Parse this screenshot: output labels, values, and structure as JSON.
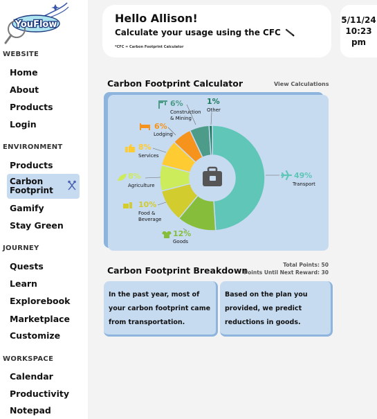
{
  "sidebar": {
    "logo_text": "YouFlow",
    "sections": [
      {
        "title": "WEBSITE",
        "items": [
          "Home",
          "About",
          "Products",
          "Login"
        ]
      },
      {
        "title": "ENVIRONMENT",
        "items": [
          "Products",
          "Carbon Footprint",
          "Gamify",
          "Stay Green"
        ]
      },
      {
        "title": "JOURNEY",
        "items": [
          "Quests",
          "Learn",
          "Explorebook",
          "Marketplace",
          "Customize"
        ]
      },
      {
        "title": "WORKSPACE",
        "items": [
          "Calendar",
          "Productivity",
          "Notepad"
        ]
      }
    ],
    "active_item": "Carbon Footprint"
  },
  "header": {
    "greeting": "Hello Allison!",
    "subtitle": "Calculate your usage using the CFC",
    "note": "*CFC = Carbon Footprint Calculator"
  },
  "datetime": {
    "date": "5/11/24",
    "time": "10:23",
    "ampm": "pm"
  },
  "calculator": {
    "title": "Carbon Footprint Calculator",
    "view_link": "View Calculations"
  },
  "colors": {
    "accent_light": "#c6daf0",
    "accent_dark": "#8db4dd"
  },
  "chart_data": {
    "type": "pie",
    "title": "",
    "slices": [
      {
        "label": "Transport",
        "value": 49,
        "pct": "49%",
        "color": "#5fc6b8",
        "icon": "plane-icon"
      },
      {
        "label": "Goods",
        "value": 12,
        "pct": "12%",
        "color": "#86be3c",
        "icon": "shirt-icon"
      },
      {
        "label": "Food & Beverage",
        "value": 10,
        "pct": "10%",
        "color": "#d2cc2e",
        "icon": "food-icon"
      },
      {
        "label": "Agriculture",
        "value": 8,
        "pct": "8%",
        "color": "#cdec5c",
        "icon": "leaf-icon"
      },
      {
        "label": "Services",
        "value": 8,
        "pct": "8%",
        "color": "#ffcb32",
        "icon": "thumbs-up-icon"
      },
      {
        "label": "Lodging",
        "value": 6,
        "pct": "6%",
        "color": "#f6931d",
        "icon": "bed-icon"
      },
      {
        "label": "Construction & Mining",
        "value": 6,
        "pct": "6%",
        "color": "#4d9c8a",
        "icon": "crane-icon"
      },
      {
        "label": "Other",
        "value": 1,
        "pct": "1%",
        "color": "#1b7a5c",
        "icon": ""
      }
    ],
    "center_icon": "briefcase-icon"
  },
  "breakdown": {
    "title": "Carbon Footprint Breakdown",
    "total_points": "Total Points: 50",
    "next_reward": "Points Until Next Reward: 30",
    "cards": [
      "In the past year, most of your carbon footprint came from transportation.",
      "Based on the plan you provided, we predict reductions in goods."
    ]
  }
}
